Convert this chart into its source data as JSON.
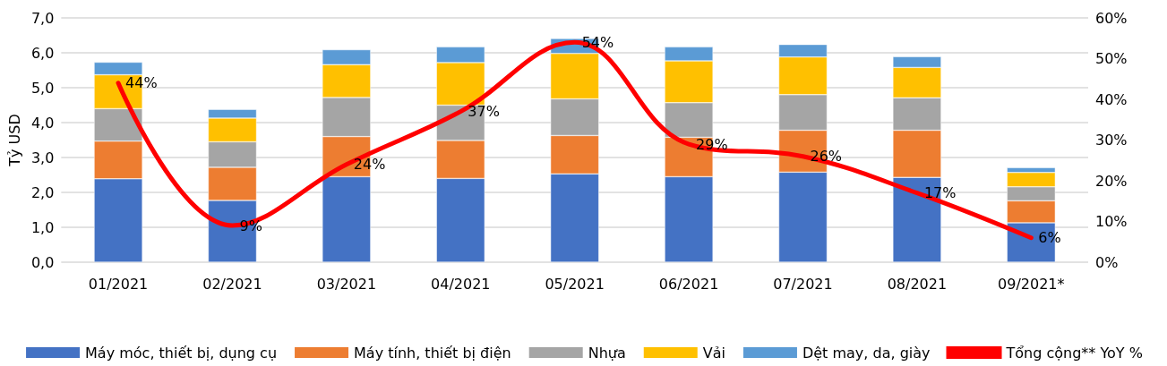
{
  "chart_data": {
    "type": "bar",
    "stacked": true,
    "ylabel": "Tỷ USD",
    "categories": [
      "01/2021",
      "02/2021",
      "03/2021",
      "04/2021",
      "05/2021",
      "06/2021",
      "07/2021",
      "08/2021",
      "09/2021*"
    ],
    "series": [
      {
        "name": "Máy móc, thiết bị, dụng cụ",
        "color": "#4472c4",
        "values": [
          2.39,
          1.77,
          2.45,
          2.4,
          2.53,
          2.45,
          2.58,
          2.43,
          1.13
        ]
      },
      {
        "name": "Máy tính, thiết bị điện",
        "color": "#ed7d31",
        "values": [
          1.08,
          0.95,
          1.15,
          1.09,
          1.1,
          1.13,
          1.2,
          1.35,
          0.63
        ]
      },
      {
        "name": "Nhựa",
        "color": "#a5a5a5",
        "values": [
          0.93,
          0.73,
          1.12,
          1.01,
          1.05,
          0.99,
          1.02,
          0.93,
          0.4
        ]
      },
      {
        "name": "Vải",
        "color": "#ffc000",
        "values": [
          0.97,
          0.68,
          0.94,
          1.22,
          1.3,
          1.2,
          1.08,
          0.87,
          0.41
        ]
      },
      {
        "name": "Dệt may, da, giày",
        "color": "#5b9bd5",
        "values": [
          0.36,
          0.25,
          0.43,
          0.45,
          0.43,
          0.4,
          0.36,
          0.31,
          0.14
        ]
      },
      {
        "name": "Tổng cộng** YoY %",
        "type": "line",
        "axis": "y2",
        "color": "#ff0000",
        "marker": "none",
        "values": [
          44,
          9,
          24,
          37,
          54,
          29,
          26,
          17,
          6
        ],
        "value_labels": [
          "44%",
          "9%",
          "24%",
          "37%",
          "54%",
          "29%",
          "26%",
          "17%",
          "6%"
        ]
      }
    ],
    "ylim": [
      0,
      7
    ],
    "yticks": [
      {
        "value": 0,
        "label": "0,0"
      },
      {
        "value": 1,
        "label": "1,0"
      },
      {
        "value": 2,
        "label": "2,0"
      },
      {
        "value": 3,
        "label": "3,0"
      },
      {
        "value": 4,
        "label": "4,0"
      },
      {
        "value": 5,
        "label": "5,0"
      },
      {
        "value": 6,
        "label": "6,0"
      },
      {
        "value": 7,
        "label": "7,0"
      }
    ],
    "y2lim": [
      0,
      60
    ],
    "y2ticks": [
      {
        "value": 0,
        "label": "0%"
      },
      {
        "value": 10,
        "label": "10%"
      },
      {
        "value": 20,
        "label": "20%"
      },
      {
        "value": 30,
        "label": "30%"
      },
      {
        "value": 40,
        "label": "40%"
      },
      {
        "value": 50,
        "label": "50%"
      },
      {
        "value": 60,
        "label": "60%"
      }
    ],
    "grid": "y",
    "legend": "bottom"
  }
}
